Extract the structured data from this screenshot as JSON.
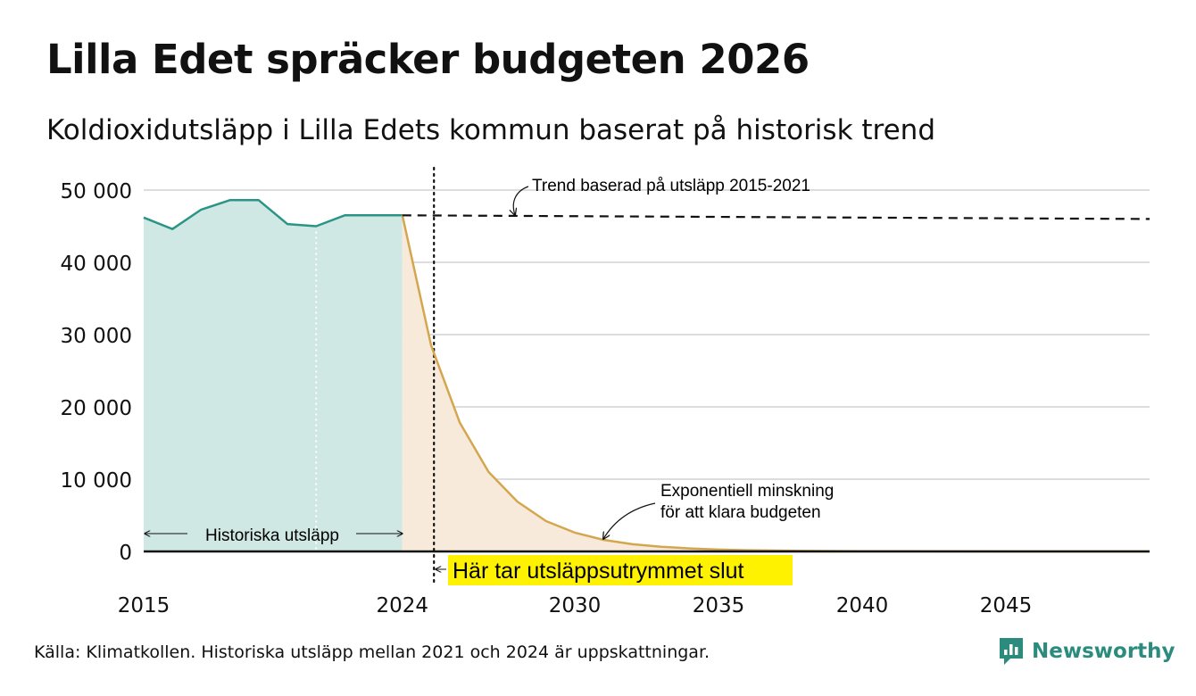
{
  "header": {
    "title": "Lilla Edet spräcker budgeten 2026",
    "subtitle": "Koldioxidutsläpp i Lilla Edets kommun baserat på historisk trend"
  },
  "footer": {
    "source": "Källa: Klimatkollen. Historiska utsläpp mellan 2021 och 2024 är uppskattningar.",
    "brand": "Newsworthy"
  },
  "colors": {
    "historical_line": "#2a9586",
    "historical_fill": "#cfe8e3",
    "budget_line": "#d4a64e",
    "budget_fill": "#f8eadb",
    "trend_line": "#111111",
    "highlight": "#fff200",
    "brand": "#2b8c7d"
  },
  "icons": {
    "logo": "newsworthy-logo-icon"
  },
  "chart_data": {
    "type": "area",
    "xlim": [
      2015,
      2050
    ],
    "ylim": [
      0,
      50000
    ],
    "grid": true,
    "x_ticks": [
      2015,
      2024,
      2030,
      2035,
      2040,
      2045
    ],
    "x_tick_labels": [
      "2015",
      "2024",
      "2030",
      "2035",
      "2040",
      "2045"
    ],
    "y_ticks": [
      0,
      10000,
      20000,
      30000,
      40000,
      50000
    ],
    "y_tick_labels": [
      "0",
      "10 000",
      "20 000",
      "30 000",
      "40 000",
      "50 000"
    ],
    "series": [
      {
        "key": "historical",
        "x": [
          2015,
          2016,
          2017,
          2018,
          2019,
          2020,
          2021,
          2022,
          2023,
          2024
        ],
        "y": [
          46200,
          44600,
          47300,
          48600,
          48600,
          45300,
          45000,
          46500,
          46500,
          46500
        ]
      },
      {
        "key": "budget",
        "x": [
          2024,
          2025,
          2026,
          2027,
          2028,
          2029,
          2030,
          2031,
          2032,
          2033,
          2034,
          2035,
          2036,
          2038,
          2040,
          2043,
          2046,
          2050
        ],
        "y": [
          46500,
          28500,
          17800,
          11000,
          6900,
          4200,
          2600,
          1600,
          1000,
          650,
          420,
          260,
          170,
          80,
          35,
          10,
          3,
          0
        ]
      },
      {
        "key": "trend",
        "x": [
          2024,
          2050
        ],
        "y": [
          46500,
          46000
        ]
      }
    ],
    "annotations": {
      "historical_label": "Historiska utsläpp",
      "trend_label": "Trend baserad på utsläpp 2015-2021",
      "budget_label_line1": "Exponentiell minskning",
      "budget_label_line2": "för att klara budgeten",
      "budget_end_label": "Här tar utsläppsutrymmet slut",
      "budget_end_year": 2025.1,
      "white_marker_year": 2021
    }
  }
}
